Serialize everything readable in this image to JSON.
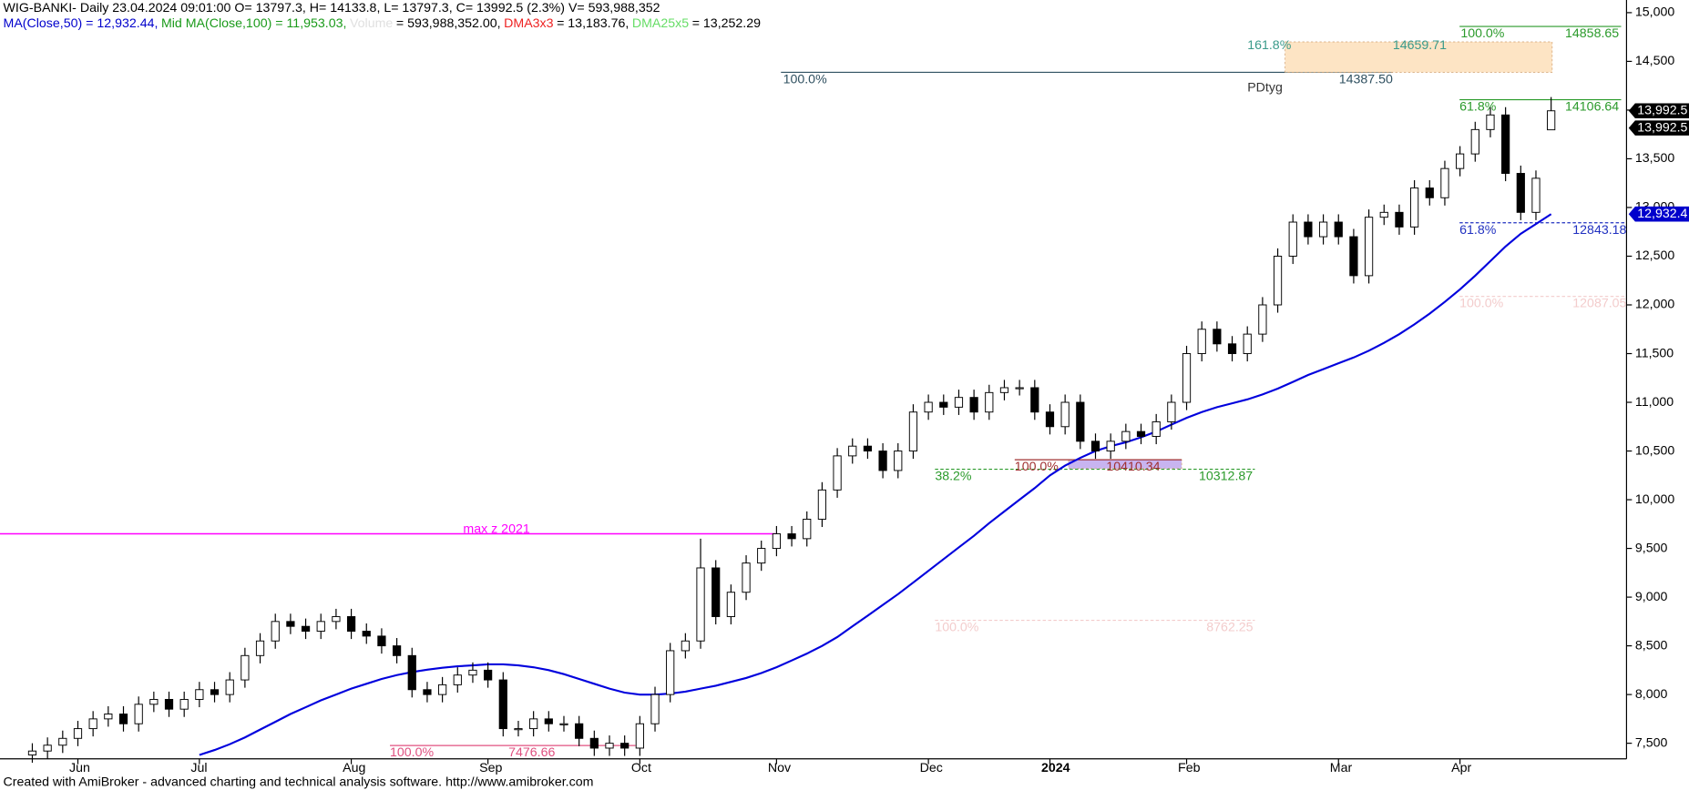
{
  "chart_data": {
    "type": "candlestick",
    "title": "WIG-BANKI- Daily 23.04.2024 09:01:00 O= 13797.3, H= 14133.8, L= 13797.3, C= 13992.5 (2.3%) V= 593,988,352",
    "indicator_legend": [
      {
        "text": "MA(Close,50) = 12,932.44,",
        "color": "#0000cc"
      },
      {
        "text": "Mid MA(Close,100) = 11,953.03,",
        "color": "#1a9a1a"
      },
      {
        "text": "Volume",
        "color": "#e0e0e0"
      },
      {
        "text": "= 593,988,352.00,",
        "color": "#000000"
      },
      {
        "text": "DMA3x3",
        "color": "#ee2222"
      },
      {
        "text": "= 13,183.76,",
        "color": "#000000"
      },
      {
        "text": "DMA25x5",
        "color": "#66dd66"
      },
      {
        "text": "= 13,252.29",
        "color": "#000000"
      }
    ],
    "footer": "Created with AmiBroker - advanced charting and technical analysis software. http://www.amibroker.com",
    "categories": [
      null,
      null,
      null,
      "Jun",
      null,
      null,
      null,
      null,
      null,
      null,
      null,
      "Jul",
      null,
      null,
      null,
      null,
      null,
      null,
      null,
      null,
      null,
      "Aug",
      null,
      null,
      null,
      null,
      null,
      null,
      null,
      null,
      "Sep",
      null,
      null,
      null,
      null,
      null,
      null,
      null,
      null,
      null,
      "Oct",
      null,
      null,
      null,
      null,
      null,
      null,
      null,
      null,
      "Nov",
      null,
      null,
      null,
      null,
      null,
      null,
      null,
      null,
      null,
      "Dec",
      null,
      null,
      null,
      null,
      null,
      null,
      null,
      "2024",
      null,
      null,
      null,
      null,
      null,
      null,
      null,
      null,
      "Feb",
      null,
      null,
      null,
      null,
      null,
      null,
      null,
      null,
      null,
      "Mar",
      null,
      null,
      null,
      null,
      null,
      null,
      null,
      "Apr",
      null,
      null,
      null,
      null,
      null,
      null
    ],
    "open": [
      7380,
      7420,
      7480,
      7550,
      7650,
      7750,
      7800,
      7700,
      7900,
      7950,
      7850,
      7950,
      8050,
      8000,
      8150,
      8400,
      8550,
      8750,
      8700,
      8650,
      8750,
      8800,
      8650,
      8600,
      8500,
      8400,
      8050,
      8000,
      8100,
      8200,
      8250,
      8150,
      7650,
      7650,
      7750,
      7700,
      7700,
      7550,
      7450,
      7500,
      7450,
      7700,
      8000,
      8450,
      8550,
      9300,
      8800,
      9050,
      9350,
      9500,
      9650,
      9600,
      9800,
      10100,
      10450,
      10550,
      10500,
      10300,
      10500,
      10900,
      11000,
      10950,
      11050,
      10900,
      11100,
      11150,
      11150,
      10900,
      10750,
      11000,
      10600,
      10500,
      10600,
      10700,
      10650,
      10800,
      11000,
      11500,
      11750,
      11600,
      11500,
      11700,
      12000,
      12500,
      12850,
      12700,
      12850,
      12700,
      12300,
      12900,
      12950,
      12800,
      13200,
      13100,
      13400,
      13550,
      13800,
      13950,
      13350,
      12950,
      13797.3
    ],
    "high": [
      7500,
      7560,
      7630,
      7730,
      7830,
      7880,
      7880,
      7980,
      8030,
      8030,
      8030,
      8130,
      8130,
      8230,
      8480,
      8630,
      8830,
      8830,
      8780,
      8830,
      8880,
      8880,
      8730,
      8680,
      8580,
      8480,
      8130,
      8180,
      8280,
      8330,
      8330,
      8230,
      7730,
      7830,
      7830,
      7780,
      7780,
      7630,
      7580,
      7580,
      7780,
      8080,
      8530,
      8630,
      9600,
      9380,
      9130,
      9430,
      9580,
      9730,
      9730,
      9880,
      10180,
      10530,
      10630,
      10630,
      10580,
      10580,
      10980,
      11080,
      11080,
      11130,
      11130,
      11180,
      11230,
      11230,
      11230,
      10980,
      11080,
      11080,
      10680,
      10680,
      10780,
      10780,
      10880,
      11080,
      11580,
      11830,
      11830,
      11680,
      11780,
      12080,
      12580,
      12930,
      12930,
      12930,
      12930,
      12780,
      12980,
      13030,
      13030,
      13280,
      13280,
      13480,
      13630,
      13880,
      14030,
      14030,
      13430,
      13380,
      14133.8
    ],
    "low": [
      7300,
      7340,
      7400,
      7470,
      7570,
      7670,
      7620,
      7620,
      7820,
      7770,
      7770,
      7870,
      7920,
      7920,
      8070,
      8320,
      8470,
      8620,
      8570,
      8570,
      8670,
      8570,
      8520,
      8420,
      8320,
      7970,
      7920,
      7920,
      8020,
      8120,
      8070,
      7570,
      7570,
      7570,
      7620,
      7620,
      7470,
      7370,
      7370,
      7370,
      7370,
      7620,
      7920,
      8370,
      8470,
      8720,
      8720,
      8970,
      9270,
      9420,
      9520,
      9520,
      9720,
      10020,
      10370,
      10420,
      10220,
      10220,
      10420,
      10820,
      10870,
      10870,
      10820,
      10820,
      11020,
      11070,
      10820,
      10670,
      10670,
      10520,
      10420,
      10420,
      10520,
      10570,
      10570,
      10720,
      10920,
      11420,
      11520,
      11420,
      11420,
      11620,
      11920,
      12420,
      12620,
      12620,
      12620,
      12220,
      12220,
      12820,
      12720,
      12720,
      13020,
      13020,
      13320,
      13470,
      13720,
      13270,
      12870,
      12870,
      13797.3
    ],
    "close": [
      7420,
      7480,
      7550,
      7650,
      7750,
      7800,
      7700,
      7900,
      7950,
      7850,
      7950,
      8050,
      8000,
      8150,
      8400,
      8550,
      8750,
      8700,
      8650,
      8750,
      8800,
      8650,
      8600,
      8500,
      8400,
      8050,
      8000,
      8100,
      8200,
      8250,
      8150,
      7650,
      7650,
      7750,
      7700,
      7700,
      7550,
      7450,
      7500,
      7450,
      7700,
      8000,
      8450,
      8550,
      9300,
      8800,
      9050,
      9350,
      9500,
      9650,
      9600,
      9800,
      10100,
      10450,
      10550,
      10500,
      10300,
      10500,
      10900,
      11000,
      10950,
      11050,
      10900,
      11100,
      11150,
      11150,
      10900,
      10750,
      11000,
      10600,
      10500,
      10600,
      10700,
      10650,
      10800,
      11000,
      11500,
      11750,
      11600,
      11500,
      11700,
      12000,
      12500,
      12850,
      12700,
      12850,
      12700,
      12300,
      12900,
      12950,
      12800,
      13200,
      13100,
      13400,
      13550,
      13800,
      13950,
      13350,
      12950,
      13300,
      13992.5
    ],
    "series": [
      {
        "name": "MA(Close,50)",
        "color": "#0000dd",
        "values": [
          null,
          null,
          null,
          null,
          null,
          null,
          null,
          null,
          null,
          null,
          null,
          7380,
          7430,
          7490,
          7560,
          7640,
          7720,
          7800,
          7870,
          7940,
          8000,
          8060,
          8110,
          8160,
          8200,
          8230,
          8255,
          8275,
          8290,
          8300,
          8310,
          8310,
          8300,
          8280,
          8250,
          8210,
          8160,
          8110,
          8060,
          8020,
          8000,
          8000,
          8010,
          8030,
          8060,
          8090,
          8130,
          8170,
          8220,
          8280,
          8350,
          8420,
          8500,
          8590,
          8700,
          8810,
          8920,
          9030,
          9150,
          9270,
          9390,
          9510,
          9630,
          9760,
          9880,
          10000,
          10120,
          10250,
          10350,
          10430,
          10500,
          10550,
          10590,
          10640,
          10700,
          10770,
          10840,
          10900,
          10950,
          10990,
          11030,
          11080,
          11140,
          11210,
          11280,
          11340,
          11400,
          11460,
          11530,
          11610,
          11700,
          11800,
          11910,
          12030,
          12160,
          12300,
          12450,
          12600,
          12730,
          12830,
          12932.44
        ]
      }
    ],
    "ylim": [
      7340,
      15130
    ],
    "yticks": [
      {
        "value": 7500,
        "label": "7,500"
      },
      {
        "value": 8000,
        "label": "8,000"
      },
      {
        "value": 8500,
        "label": "8,500"
      },
      {
        "value": 9000,
        "label": "9,000"
      },
      {
        "value": 9500,
        "label": "9,500"
      },
      {
        "value": 10000,
        "label": "10,000"
      },
      {
        "value": 10500,
        "label": "10,500"
      },
      {
        "value": 11000,
        "label": "11,000"
      },
      {
        "value": 11500,
        "label": "11,500"
      },
      {
        "value": 12000,
        "label": "12,000"
      },
      {
        "value": 12500,
        "label": "12,500"
      },
      {
        "value": 13000,
        "label": "13,000"
      },
      {
        "value": 13500,
        "label": "13,500"
      },
      {
        "value": 14000,
        "label": "14,000"
      },
      {
        "value": 14500,
        "label": "14,500"
      },
      {
        "value": 15000,
        "label": "15,000"
      }
    ],
    "reference_line": {
      "text": "max z 2021",
      "price": 9650,
      "color": "#ff00ff"
    },
    "levels": [
      {
        "pct": "100.0%",
        "price": 14387.5,
        "price_label": "14387.50",
        "color": "#2f5060"
      },
      {
        "pct": "161.8%",
        "price": 14659.71,
        "price_label": "14659.71",
        "color": "#3a9a8a"
      },
      {
        "pct": "100.0%",
        "price": 14858.65,
        "price_label": "14858.65",
        "color": "#2a9a2a"
      },
      {
        "pct": "61.8%",
        "price": 14106.64,
        "price_label": "14106.64",
        "color": "#2a9a2a"
      },
      {
        "pct": "61.8%",
        "price": 12843.18,
        "price_label": "12843.18",
        "color": "#2030c0"
      },
      {
        "pct": "100.0%",
        "price": 12087.05,
        "price_label": "12087.05",
        "color": "#f3cccc"
      },
      {
        "pct": "38.2%",
        "price": 10312.87,
        "price_label": "10312.87",
        "color": "#2a9a2a"
      },
      {
        "pct": "100.0%",
        "price": 10410.34,
        "price_label": "10410.34",
        "color": "#a03030"
      },
      {
        "pct": "100.0%",
        "price": 8762.25,
        "price_label": "8762.25",
        "color": "#f3cccc"
      },
      {
        "pct": "100.0%",
        "price": 7476.66,
        "price_label": "7476.66",
        "color": "#e05080"
      }
    ],
    "annotation": "PDtyg",
    "axis_badges": [
      {
        "label": "13,992.5",
        "price": 13992.5,
        "color": "#000000"
      },
      {
        "label": "13,992.5",
        "price": 13992.5,
        "color": "#000000"
      },
      {
        "label": "12,932.4",
        "price": 12932.44,
        "color": "#0000cc"
      }
    ]
  }
}
